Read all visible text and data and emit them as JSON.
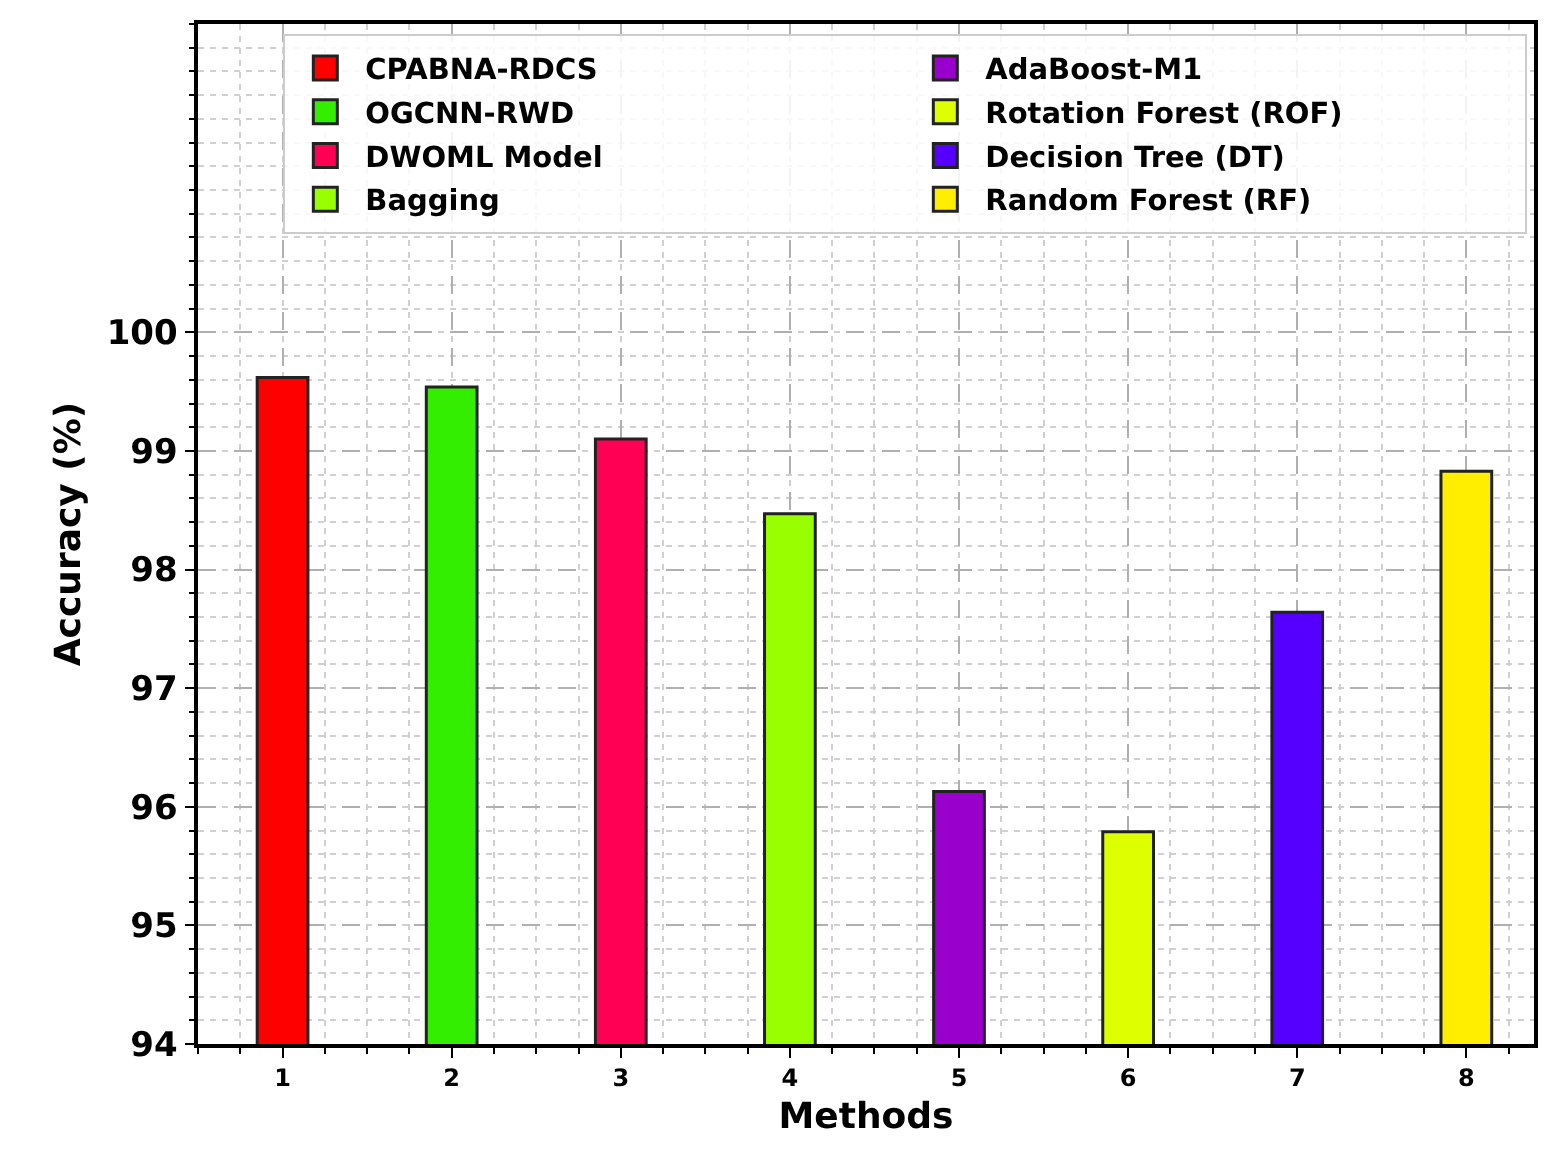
{
  "chart_data": {
    "type": "bar",
    "xlabel": "Methods",
    "ylabel": "Accuracy (%)",
    "x": [
      1,
      2,
      3,
      4,
      5,
      6,
      7,
      8
    ],
    "series": [
      {
        "name": "CPABNA-RDCS",
        "color": "#ff0000",
        "values": [
          99.62,
          null,
          null,
          null,
          null,
          null,
          null,
          null
        ]
      },
      {
        "name": "OGCNN-RWD",
        "color": "#33ee00",
        "values": [
          null,
          99.54,
          null,
          null,
          null,
          null,
          null,
          null
        ]
      },
      {
        "name": "DWOML Model",
        "color": "#ff0055",
        "values": [
          null,
          null,
          99.1,
          null,
          null,
          null,
          null,
          null
        ]
      },
      {
        "name": "Bagging",
        "color": "#99ff00",
        "values": [
          null,
          null,
          null,
          98.47,
          null,
          null,
          null,
          null
        ]
      },
      {
        "name": "AdaBoost-M1",
        "color": "#9900cc",
        "values": [
          null,
          null,
          null,
          null,
          96.13,
          null,
          null,
          null
        ]
      },
      {
        "name": "Rotation Forest (ROF)",
        "color": "#ddff00",
        "values": [
          null,
          null,
          null,
          null,
          null,
          95.79,
          null,
          null
        ]
      },
      {
        "name": "Decision Tree (DT)",
        "color": "#5500ff",
        "values": [
          null,
          null,
          null,
          null,
          null,
          null,
          97.64,
          null
        ]
      },
      {
        "name": "Random Forest (RF)",
        "color": "#ffee00",
        "values": [
          null,
          null,
          null,
          null,
          null,
          null,
          null,
          98.83
        ]
      }
    ],
    "xlim": [
      0.5,
      8.4
    ],
    "xticks": [
      1,
      2,
      3,
      4,
      5,
      6,
      7,
      8
    ],
    "ylim": [
      94,
      102.6
    ],
    "yticks": [
      94,
      95,
      96,
      97,
      98,
      99,
      100
    ],
    "grid": true,
    "legend": "top right"
  }
}
